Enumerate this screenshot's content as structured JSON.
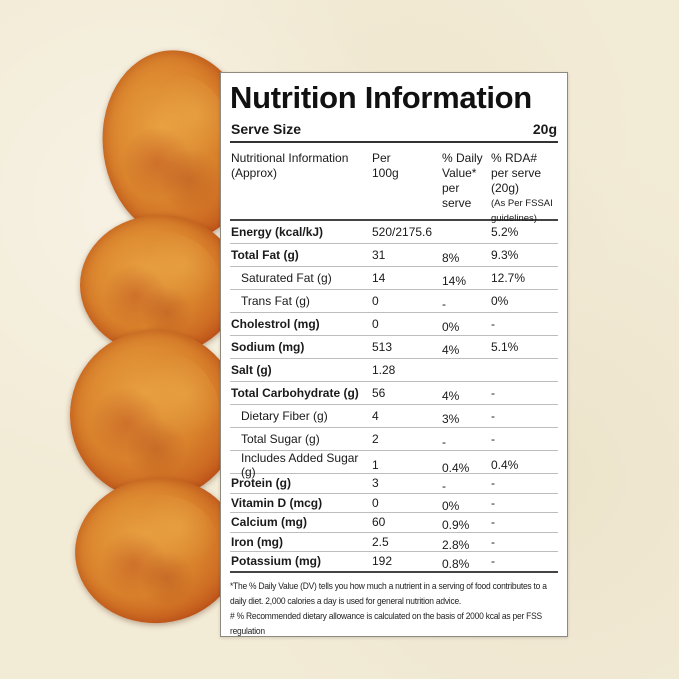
{
  "panel": {
    "title": "Nutrition Information",
    "serve_size_label": "Serve Size",
    "serve_size_value": "20g",
    "columns": {
      "nutrient": "Nutritional Information (Approx)",
      "per100": "Per 100g",
      "dv": "% Daily Value* per serve",
      "rda_main": "% RDA# per serve (20g)",
      "rda_note": "(As Per FSSAI guidelines)"
    },
    "rows": [
      {
        "name": "Energy (kcal/kJ)",
        "per100": "520/2175.6",
        "dv": "",
        "rda": "5.2%"
      },
      {
        "name": "Total Fat (g)",
        "per100": "31",
        "dv": "8%",
        "rda": "9.3%"
      },
      {
        "name": "Saturated Fat (g)",
        "per100": "14",
        "dv": "14%",
        "rda": "12.7%"
      },
      {
        "name": "Trans Fat (g)",
        "per100": "0",
        "dv": "-",
        "rda": "0%"
      },
      {
        "name": "Cholestrol (mg)",
        "per100": "0",
        "dv": "0%",
        "rda": "-"
      },
      {
        "name": "Sodium (mg)",
        "per100": "513",
        "dv": "4%",
        "rda": "5.1%"
      },
      {
        "name": "Salt (g)",
        "per100": "1.28",
        "dv": "",
        "rda": ""
      },
      {
        "name": "Total Carbohydrate (g)",
        "per100": "56",
        "dv": "4%",
        "rda": "-"
      },
      {
        "name": "Dietary Fiber (g)",
        "per100": "4",
        "dv": "3%",
        "rda": "-"
      },
      {
        "name": "Total Sugar (g)",
        "per100": "2",
        "dv": "-",
        "rda": "-"
      },
      {
        "name": "Includes Added Sugar (g)",
        "per100": "1",
        "dv": "0.4%",
        "rda": "0.4%"
      },
      {
        "name": "Protein (g)",
        "per100": "3",
        "dv": "-",
        "rda": "-"
      },
      {
        "name": "Vitamin D (mcg)",
        "per100": "0",
        "dv": "0%",
        "rda": "-"
      },
      {
        "name": "Calcium (mg)",
        "per100": "60",
        "dv": "0.9%",
        "rda": "-"
      },
      {
        "name": "Iron (mg)",
        "per100": "2.5",
        "dv": "2.8%",
        "rda": "-"
      },
      {
        "name": "Potassium (mg)",
        "per100": "192",
        "dv": "0.8%",
        "rda": "-"
      }
    ],
    "footnotes": [
      "*The % Daily Value (DV) tells you how much a nutrient in a serving of food contributes to a daily diet. 2,000 calories a day is used for general nutrition advice.",
      "# % Recommended dietary allowance  is calculated on the basis of 2000 kcal as per FSS regulation"
    ]
  },
  "colors": {
    "background": "#f2ebd6",
    "chip": "#d9822c",
    "panel": "#ffffff",
    "text": "#1a1a1a"
  }
}
